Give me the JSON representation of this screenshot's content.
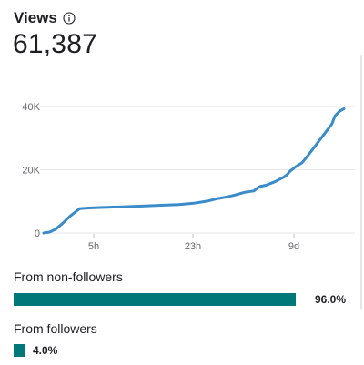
{
  "header": {
    "title": "Views",
    "total": "61,387"
  },
  "chart_data": {
    "type": "line",
    "title": "",
    "xlabel": "",
    "ylabel": "",
    "x_tick_labels": [
      "5h",
      "23h",
      "9d"
    ],
    "y_tick_labels": [
      "0",
      "20K",
      "40K"
    ],
    "y_ticks": [
      0,
      20000,
      40000
    ],
    "ylim": [
      0,
      40000
    ],
    "grid": true,
    "series": [
      {
        "color": "#3a8bc9",
        "points": [
          [
            0.0,
            0
          ],
          [
            0.02,
            300
          ],
          [
            0.04,
            1200
          ],
          [
            0.06,
            2800
          ],
          [
            0.09,
            5500
          ],
          [
            0.12,
            7700
          ],
          [
            0.15,
            7900
          ],
          [
            0.2,
            8100
          ],
          [
            0.3,
            8400
          ],
          [
            0.4,
            8800
          ],
          [
            0.45,
            9000
          ],
          [
            0.5,
            9400
          ],
          [
            0.55,
            10200
          ],
          [
            0.58,
            10900
          ],
          [
            0.61,
            11400
          ],
          [
            0.64,
            12100
          ],
          [
            0.67,
            12900
          ],
          [
            0.7,
            13300
          ],
          [
            0.71,
            14100
          ],
          [
            0.72,
            14700
          ],
          [
            0.74,
            15100
          ],
          [
            0.77,
            16200
          ],
          [
            0.79,
            17200
          ],
          [
            0.8,
            17700
          ],
          [
            0.81,
            18400
          ],
          [
            0.82,
            19500
          ],
          [
            0.84,
            21000
          ],
          [
            0.86,
            22200
          ],
          [
            0.88,
            24500
          ],
          [
            0.9,
            27000
          ],
          [
            0.92,
            29500
          ],
          [
            0.94,
            32000
          ],
          [
            0.96,
            34500
          ],
          [
            0.97,
            37000
          ],
          [
            0.985,
            38500
          ],
          [
            1.0,
            39300
          ]
        ]
      }
    ]
  },
  "breakdown": [
    {
      "label": "From non-followers",
      "value": "96.0%",
      "fraction": 0.96,
      "color": "#00787a"
    },
    {
      "label": "From followers",
      "value": "4.0%",
      "fraction": 0.04,
      "color": "#00787a"
    }
  ],
  "icons": {
    "info": "info-circle-icon"
  }
}
